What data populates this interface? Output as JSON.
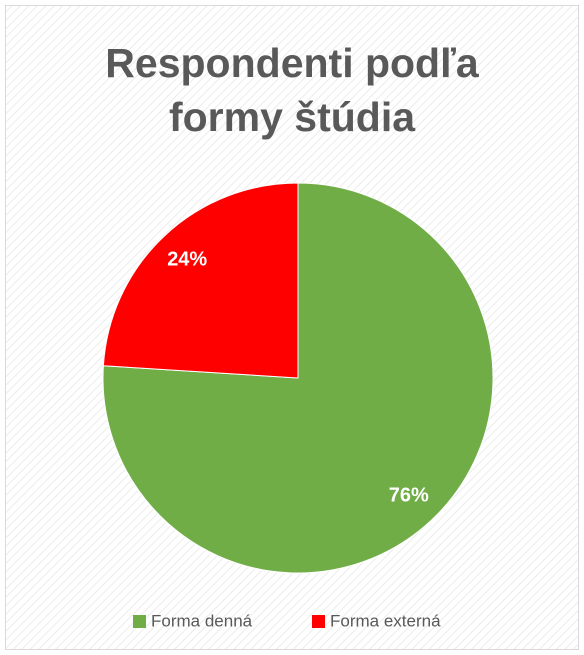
{
  "chart_data": {
    "type": "pie",
    "title": "Respondenti podľa formy štúdia",
    "categories": [
      "Forma denná",
      "Forma externá"
    ],
    "values": [
      76,
      24
    ],
    "value_labels": [
      "76%",
      "24%"
    ],
    "colors": [
      "#70ad47",
      "#ff0000"
    ],
    "legend": "bottom"
  }
}
